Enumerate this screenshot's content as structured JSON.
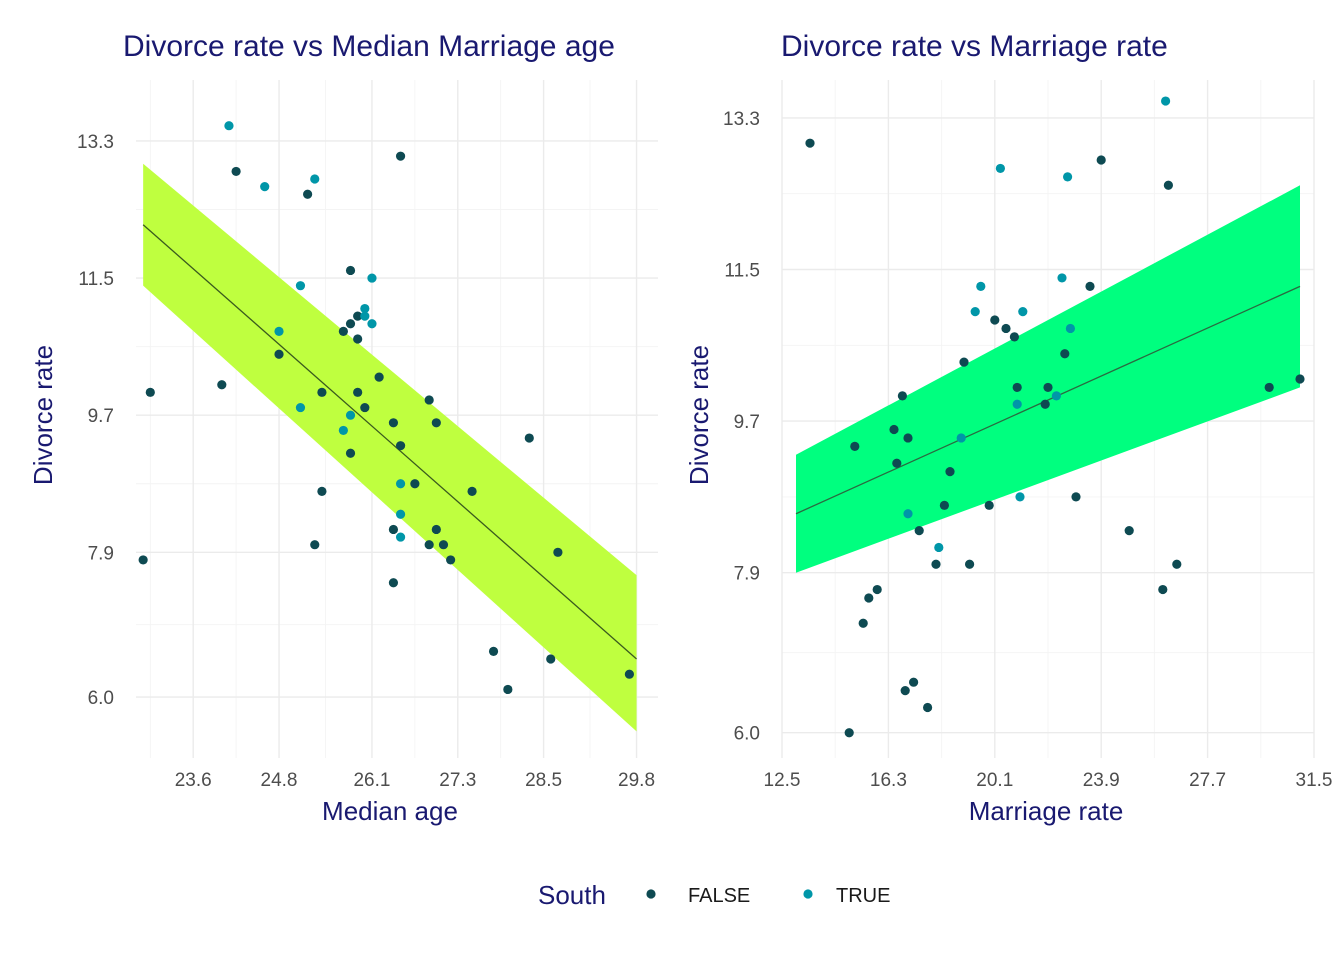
{
  "chart_data": [
    {
      "type": "scatter",
      "title": "Divorce rate vs Median Marriage age",
      "xlabel": "Median age",
      "ylabel": "Divorce rate",
      "xlim": [
        22.8,
        30.1
      ],
      "ylim": [
        5.2,
        14.1
      ],
      "xticks": [
        "23.6",
        "24.8",
        "26.1",
        "27.3",
        "28.5",
        "29.8"
      ],
      "yticks": [
        "6.0",
        "7.9",
        "9.7",
        "11.5",
        "13.3"
      ],
      "grid": true,
      "band_color": "#bfff3f",
      "line_color": "#3a5a1e",
      "trend": {
        "x": [
          22.9,
          29.8
        ],
        "y": [
          12.2,
          6.5
        ],
        "lower": [
          11.4,
          5.55
        ],
        "upper": [
          13.0,
          7.6
        ]
      },
      "series": [
        {
          "name": "FALSE",
          "color": "#0e4a52",
          "points": [
            [
              22.9,
              7.8
            ],
            [
              23.0,
              10.0
            ],
            [
              24.0,
              10.1
            ],
            [
              24.2,
              12.9
            ],
            [
              24.8,
              10.5
            ],
            [
              25.2,
              12.6
            ],
            [
              25.3,
              8.0
            ],
            [
              25.4,
              10.0
            ],
            [
              25.4,
              8.7
            ],
            [
              25.7,
              10.8
            ],
            [
              25.8,
              11.6
            ],
            [
              25.8,
              10.9
            ],
            [
              25.8,
              9.2
            ],
            [
              25.9,
              11.0
            ],
            [
              25.9,
              10.7
            ],
            [
              25.9,
              10.0
            ],
            [
              26.0,
              9.8
            ],
            [
              26.2,
              10.2
            ],
            [
              26.4,
              9.6
            ],
            [
              26.4,
              8.2
            ],
            [
              26.4,
              7.5
            ],
            [
              26.5,
              13.1
            ],
            [
              26.5,
              9.3
            ],
            [
              26.7,
              8.8
            ],
            [
              26.9,
              9.9
            ],
            [
              26.9,
              8.0
            ],
            [
              27.0,
              9.6
            ],
            [
              27.0,
              8.2
            ],
            [
              27.1,
              8.0
            ],
            [
              27.2,
              7.8
            ],
            [
              27.5,
              8.7
            ],
            [
              27.8,
              6.6
            ],
            [
              28.0,
              6.1
            ],
            [
              28.3,
              9.4
            ],
            [
              28.6,
              6.5
            ],
            [
              28.7,
              7.9
            ],
            [
              29.7,
              6.3
            ]
          ]
        },
        {
          "name": "TRUE",
          "color": "#0096a8",
          "points": [
            [
              24.1,
              13.5
            ],
            [
              24.6,
              12.7
            ],
            [
              24.8,
              10.8
            ],
            [
              25.1,
              11.4
            ],
            [
              25.1,
              9.8
            ],
            [
              25.3,
              12.8
            ],
            [
              25.7,
              9.5
            ],
            [
              25.8,
              9.7
            ],
            [
              26.0,
              11.1
            ],
            [
              26.0,
              11.0
            ],
            [
              26.1,
              11.5
            ],
            [
              26.1,
              10.9
            ],
            [
              26.5,
              8.8
            ],
            [
              26.5,
              8.4
            ],
            [
              26.5,
              8.1
            ]
          ]
        }
      ]
    },
    {
      "type": "scatter",
      "title": "Divorce rate vs Marriage rate",
      "xlabel": "Marriage rate",
      "ylabel": "Divorce rate",
      "xlim": [
        12.5,
        31.5
      ],
      "ylim": [
        5.7,
        13.75
      ],
      "xticks": [
        "12.5",
        "16.3",
        "20.1",
        "23.9",
        "27.7",
        "31.5"
      ],
      "yticks": [
        "6.0",
        "7.9",
        "9.7",
        "11.5",
        "13.3"
      ],
      "grid": true,
      "band_color": "#00ff7f",
      "line_color": "#2a6a40",
      "trend": {
        "x": [
          13.0,
          31.0
        ],
        "y": [
          8.6,
          11.3
        ],
        "lower": [
          7.9,
          10.1
        ],
        "upper": [
          9.3,
          12.5
        ]
      },
      "series": [
        {
          "name": "FALSE",
          "color": "#0e4a52",
          "points": [
            [
              13.5,
              13.0
            ],
            [
              14.9,
              6.0
            ],
            [
              15.1,
              9.4
            ],
            [
              15.4,
              7.3
            ],
            [
              15.6,
              7.6
            ],
            [
              15.9,
              7.7
            ],
            [
              16.5,
              9.6
            ],
            [
              16.6,
              9.2
            ],
            [
              16.8,
              10.0
            ],
            [
              16.9,
              6.5
            ],
            [
              17.0,
              9.5
            ],
            [
              17.2,
              6.6
            ],
            [
              17.4,
              8.4
            ],
            [
              17.7,
              6.3
            ],
            [
              18.0,
              8.0
            ],
            [
              18.3,
              8.7
            ],
            [
              18.5,
              9.1
            ],
            [
              19.0,
              10.4
            ],
            [
              19.2,
              8.0
            ],
            [
              19.9,
              8.7
            ],
            [
              20.1,
              10.9
            ],
            [
              20.5,
              10.8
            ],
            [
              20.8,
              10.7
            ],
            [
              20.9,
              10.1
            ],
            [
              21.9,
              9.9
            ],
            [
              22.0,
              10.1
            ],
            [
              22.6,
              10.5
            ],
            [
              23.5,
              11.3
            ],
            [
              23.9,
              12.8
            ],
            [
              23.0,
              8.8
            ],
            [
              24.9,
              8.4
            ],
            [
              26.1,
              7.7
            ],
            [
              26.3,
              12.5
            ],
            [
              26.6,
              8.0
            ],
            [
              29.9,
              10.1
            ],
            [
              31.0,
              10.2
            ]
          ]
        },
        {
          "name": "TRUE",
          "color": "#0096a8",
          "points": [
            [
              17.0,
              8.6
            ],
            [
              18.1,
              8.2
            ],
            [
              18.9,
              9.5
            ],
            [
              19.4,
              11.0
            ],
            [
              19.6,
              11.3
            ],
            [
              20.3,
              12.7
            ],
            [
              20.9,
              9.9
            ],
            [
              21.0,
              8.8
            ],
            [
              21.1,
              11.0
            ],
            [
              22.3,
              10.0
            ],
            [
              22.5,
              11.4
            ],
            [
              22.7,
              12.6
            ],
            [
              22.8,
              10.8
            ],
            [
              26.2,
              13.5
            ]
          ]
        }
      ]
    }
  ],
  "legend": {
    "title": "South",
    "items": [
      {
        "label": "FALSE",
        "color": "#0e4a52"
      },
      {
        "label": "TRUE",
        "color": "#0096a8"
      }
    ]
  }
}
